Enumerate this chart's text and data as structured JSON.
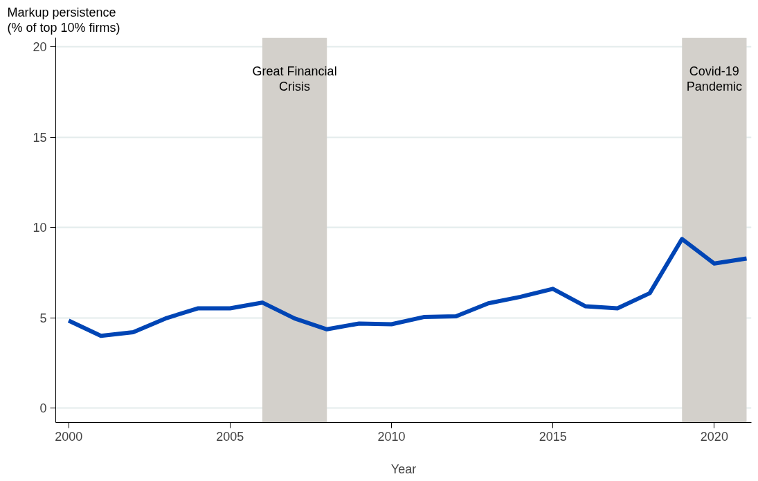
{
  "chart_data": {
    "type": "line",
    "ylabel": "Markup persistence\n(% of top 10% firms)",
    "xlabel": "Year",
    "x": [
      2000,
      2001,
      2002,
      2003,
      2004,
      2005,
      2006,
      2007,
      2008,
      2009,
      2010,
      2011,
      2012,
      2013,
      2014,
      2015,
      2016,
      2017,
      2018,
      2019,
      2020,
      2021
    ],
    "series": [
      {
        "color": "#0045b5",
        "values": [
          4.84,
          4.0,
          4.2,
          4.96,
          5.52,
          5.52,
          5.84,
          4.96,
          4.36,
          4.68,
          4.64,
          5.04,
          5.08,
          5.8,
          6.16,
          6.6,
          5.64,
          5.52,
          6.36,
          9.36,
          8.0,
          8.28
        ]
      }
    ],
    "xlim": [
      1999.6,
      2021.15
    ],
    "ylim": [
      -0.8,
      20.5
    ],
    "xticks": [
      2000,
      2005,
      2010,
      2015,
      2020
    ],
    "yticks": [
      0,
      5,
      10,
      15,
      20
    ],
    "grid": "y",
    "marker": "none",
    "line_style": "solid",
    "bands": [
      {
        "axis": "x",
        "from": 2006,
        "to": 2008,
        "label": "Great Financial\nCrisis",
        "color": "#d3d0cb"
      },
      {
        "axis": "x",
        "from": 2019,
        "to": 2021,
        "label": "Covid-19\nPandemic",
        "color": "#d3d0cb"
      }
    ]
  }
}
